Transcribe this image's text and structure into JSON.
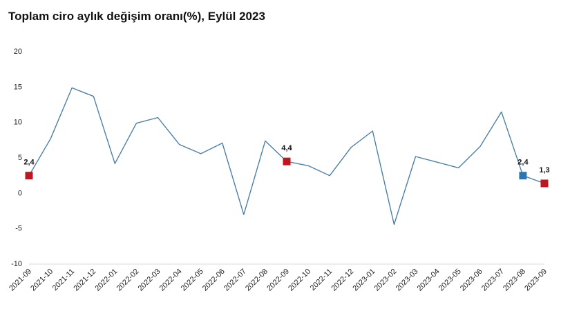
{
  "chart_data": {
    "type": "line",
    "title": "Toplam ciro aylık değişim oranı(%), Eylül 2023",
    "xlabel": "",
    "ylabel": "",
    "ylim": [
      -10,
      20
    ],
    "yticks": [
      20,
      15,
      10,
      5,
      0,
      -5,
      -10
    ],
    "grid": false,
    "categories": [
      "2021-09",
      "2021-10",
      "2021-11",
      "2021-12",
      "2022-01",
      "2022-02",
      "2022-03",
      "2022-04",
      "2022-05",
      "2022-06",
      "2022-07",
      "2022-08",
      "2022-09",
      "2022-10",
      "2022-11",
      "2022-12",
      "2023-01",
      "2023-02",
      "2023-03",
      "2023-04",
      "2023-05",
      "2023-06",
      "2023-07",
      "2023-08",
      "2023-09"
    ],
    "series": [
      {
        "values": [
          2.4,
          7.6,
          14.8,
          13.6,
          4.1,
          9.8,
          10.6,
          6.8,
          5.5,
          7.0,
          -3.1,
          7.3,
          4.4,
          3.8,
          2.4,
          6.4,
          8.7,
          -4.5,
          5.1,
          4.3,
          3.5,
          6.5,
          11.4,
          2.4,
          1.3
        ],
        "color": "#4a7fa8"
      }
    ],
    "highlights": [
      {
        "index": 0,
        "label": "2,4",
        "color": "#c0161f"
      },
      {
        "index": 12,
        "label": "4,4",
        "color": "#c0161f"
      },
      {
        "index": 23,
        "label": "2,4",
        "color": "#2e75b6"
      },
      {
        "index": 24,
        "label": "1,3",
        "color": "#c0161f"
      }
    ]
  }
}
